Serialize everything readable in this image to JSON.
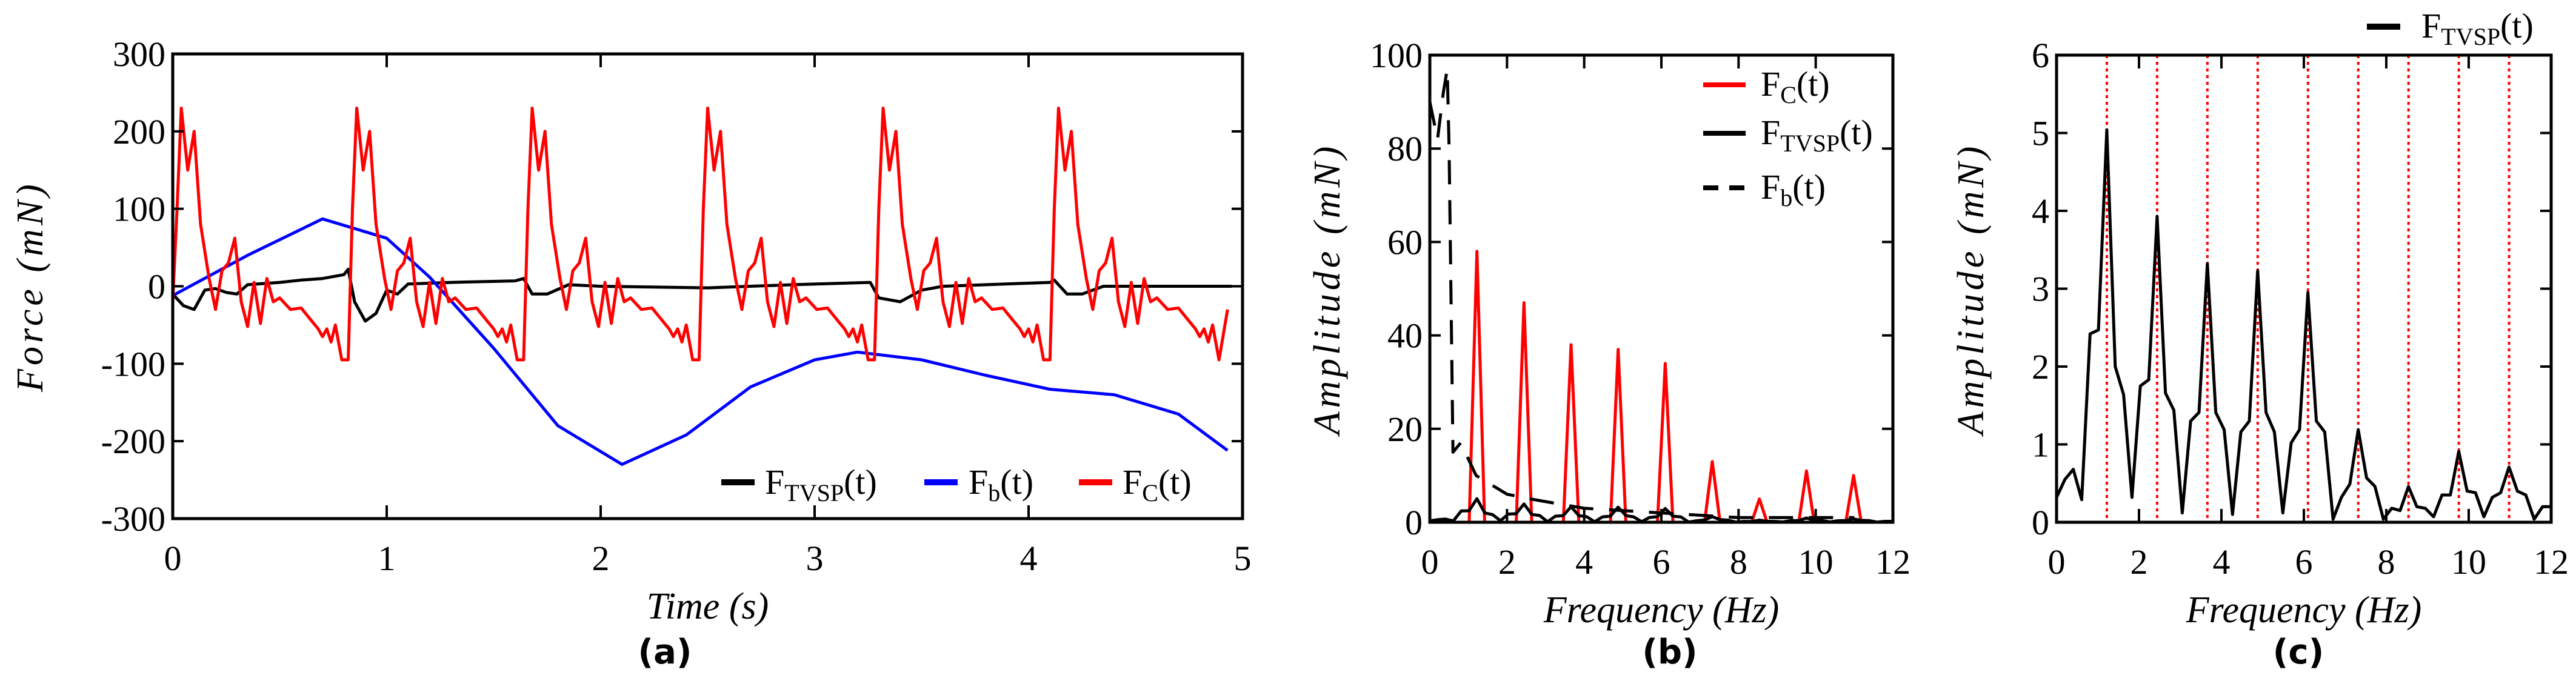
{
  "chart_data": [
    {
      "id": "a",
      "panel_label": "(a)",
      "type": "line",
      "xlabel": "Time (s)",
      "ylabel": "Force (mN)",
      "xlim": [
        0,
        5
      ],
      "ylim": [
        -300,
        300
      ],
      "xticks": [
        0,
        1,
        2,
        3,
        4,
        5
      ],
      "yticks": [
        -300,
        -200,
        -100,
        0,
        100,
        200,
        300
      ],
      "legend_placement": "bottom-right",
      "series": [
        {
          "name": "FTVSP(t)",
          "label": {
            "main": "F",
            "sub": "TVSP",
            "tail": "(t)"
          },
          "color": "#000000",
          "x": [
            0,
            0.05,
            0.1,
            0.15,
            0.2,
            0.25,
            0.3,
            0.35,
            0.5,
            0.6,
            0.7,
            0.8,
            0.82,
            0.85,
            0.9,
            0.95,
            1.0,
            1.05,
            1.1,
            1.3,
            1.6,
            1.64,
            1.68,
            1.75,
            1.85,
            2.0,
            2.5,
            2.9,
            3.26,
            3.3,
            3.4,
            3.5,
            3.6,
            4.1,
            4.12,
            4.18,
            4.25,
            4.35,
            4.95
          ],
          "y": [
            -10,
            -25,
            -30,
            -5,
            -3,
            -8,
            -10,
            2,
            5,
            8,
            10,
            15,
            22,
            -20,
            -45,
            -35,
            -5,
            -10,
            3,
            5,
            7,
            10,
            -10,
            -10,
            2,
            0,
            -2,
            2,
            5,
            -15,
            -20,
            -5,
            0,
            5,
            8,
            -10,
            -10,
            0,
            0
          ]
        },
        {
          "name": "Fb(t)",
          "label": {
            "main": "F",
            "sub": "b",
            "tail": "(t)"
          },
          "color": "#0000ff",
          "x": [
            0,
            0.35,
            0.7,
            1.0,
            1.2,
            1.5,
            1.8,
            2.1,
            2.4,
            2.7,
            3.0,
            3.2,
            3.5,
            3.8,
            4.1,
            4.4,
            4.7,
            4.93
          ],
          "y": [
            -12,
            40,
            87,
            62,
            12,
            -80,
            -180,
            -230,
            -192,
            -130,
            -95,
            -85,
            -95,
            -115,
            -133,
            -140,
            -165,
            -212
          ]
        },
        {
          "name": "FC(t)",
          "label": {
            "main": "F",
            "sub": "C",
            "tail": "(t)"
          },
          "color": "#ff0000",
          "cycle_starts": [
            0,
            0.82,
            1.64,
            2.46,
            3.28,
            4.1
          ],
          "cycle_offsets": [
            0,
            0.02,
            0.04,
            0.07,
            0.1,
            0.13,
            0.17,
            0.2,
            0.23,
            0.26,
            0.29,
            0.32,
            0.35,
            0.38,
            0.41,
            0.44,
            0.47,
            0.5,
            0.55,
            0.6,
            0.65,
            0.68,
            0.7,
            0.72,
            0.74,
            0.76,
            0.79
          ],
          "cycle_values": [
            -95,
            100,
            230,
            150,
            200,
            80,
            10,
            -30,
            20,
            30,
            62,
            -20,
            -52,
            5,
            -48,
            10,
            -20,
            -15,
            -30,
            -28,
            -45,
            -55,
            -65,
            -55,
            -72,
            -50,
            -95
          ],
          "end_point": [
            4.93,
            -30
          ]
        }
      ]
    },
    {
      "id": "b",
      "panel_label": "(b)",
      "type": "line",
      "xlabel": "Frequency (Hz)",
      "ylabel": "Amplitude (mN)",
      "xlim": [
        0,
        12
      ],
      "ylim": [
        0,
        100
      ],
      "xticks": [
        0,
        2,
        4,
        6,
        8,
        10,
        12
      ],
      "yticks": [
        0,
        20,
        40,
        60,
        80,
        100
      ],
      "legend_placement": "top-right",
      "series": [
        {
          "name": "FC(t)",
          "label": {
            "main": "F",
            "sub": "C",
            "tail": "(t)"
          },
          "color": "#ff0000",
          "peaks_x": [
            1.22,
            2.44,
            3.66,
            4.88,
            6.1,
            7.32,
            8.54,
            9.76,
            10.98
          ],
          "peaks_y": [
            58,
            47,
            38,
            37,
            34,
            13,
            5,
            11,
            10
          ]
        },
        {
          "name": "FTVSP(t)",
          "label": {
            "main": "F",
            "sub": "TVSP",
            "tail": "(t)"
          },
          "color": "#000000",
          "same_as": "c"
        },
        {
          "name": "Fb(t)",
          "label": {
            "main": "F",
            "sub": "b",
            "tail": "(t)"
          },
          "color": "#000000",
          "dash": true,
          "x": [
            0,
            0.2,
            0.35,
            0.45,
            0.5,
            0.6,
            0.8,
            1.2,
            2.0,
            2.6,
            4.0,
            6.0,
            8.0,
            11.0
          ],
          "y": [
            90,
            82,
            92,
            97,
            80,
            15,
            17,
            10,
            6,
            5,
            3,
            2,
            1,
            1
          ]
        }
      ]
    },
    {
      "id": "c",
      "panel_label": "(c)",
      "type": "line",
      "xlabel": "Frequency (Hz)",
      "ylabel": "Amplitude (mN)",
      "xlim": [
        0,
        12
      ],
      "ylim": [
        0,
        6
      ],
      "xticks": [
        0,
        2,
        4,
        6,
        8,
        10,
        12
      ],
      "yticks": [
        0,
        1,
        2,
        3,
        4,
        5,
        6
      ],
      "legend_placement": "above-top-right",
      "harmonic_lines_x": [
        1.22,
        2.44,
        3.66,
        4.88,
        6.1,
        7.32,
        8.54,
        9.76,
        10.98
      ],
      "harmonic_line_color": "#ff0000",
      "series": [
        {
          "name": "FTVSP(t)",
          "label": {
            "main": "F",
            "sub": "TVSP",
            "tail": "(t)"
          },
          "color": "#000000",
          "dx": 0.2033,
          "y": [
            0.32,
            0.55,
            0.68,
            0.29,
            2.42,
            2.47,
            5.04,
            2.0,
            1.64,
            0.32,
            1.75,
            1.83,
            3.93,
            1.66,
            1.44,
            0.12,
            1.3,
            1.41,
            3.32,
            1.41,
            1.19,
            0.1,
            1.16,
            1.3,
            3.23,
            1.41,
            1.16,
            0.12,
            1.02,
            1.19,
            2.95,
            1.3,
            1.16,
            0.04,
            0.32,
            0.49,
            1.19,
            0.57,
            0.46,
            0.04,
            0.18,
            0.15,
            0.46,
            0.2,
            0.18,
            0.07,
            0.35,
            0.35,
            0.91,
            0.4,
            0.38,
            0.07,
            0.32,
            0.38,
            0.71,
            0.4,
            0.35,
            0.04,
            0.2,
            0.2
          ]
        }
      ]
    }
  ]
}
